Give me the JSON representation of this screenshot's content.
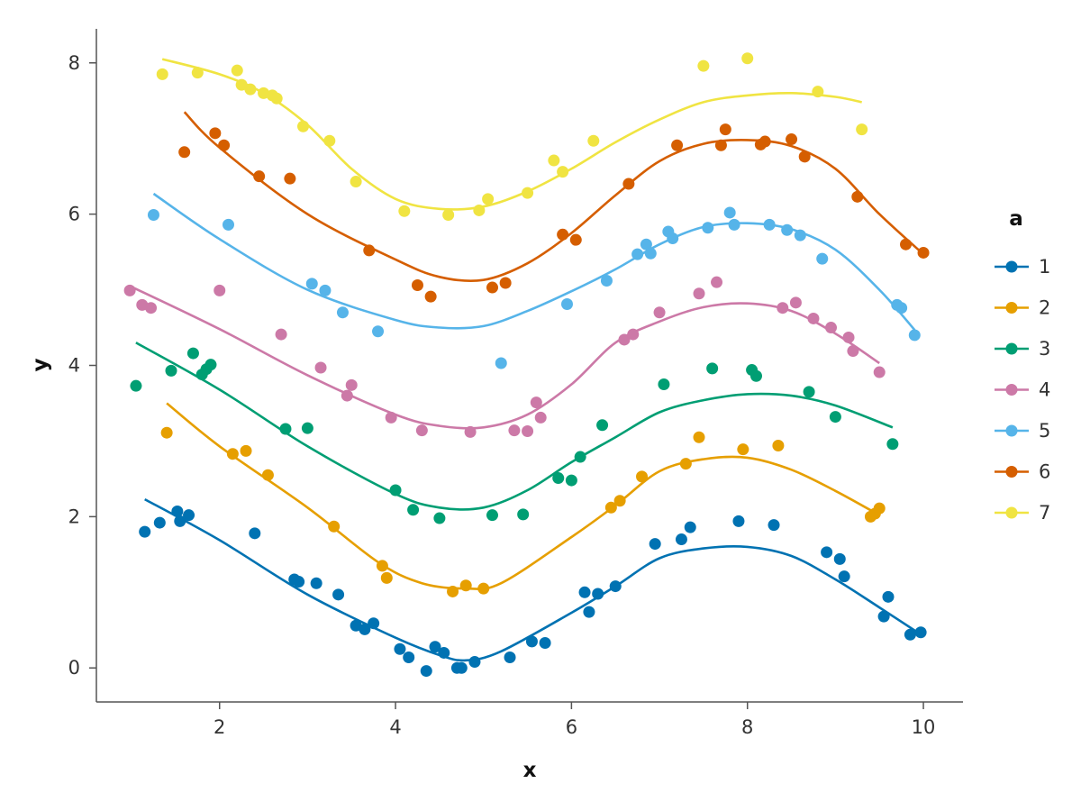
{
  "chart_data": {
    "type": "scatter",
    "xlabel": "x",
    "ylabel": "y",
    "xlim": [
      0.6,
      10.45
    ],
    "ylim": [
      -0.45,
      8.45
    ],
    "xticks": [
      2,
      4,
      6,
      8,
      10
    ],
    "yticks": [
      0,
      2,
      4,
      6,
      8
    ],
    "grid": false,
    "legend": {
      "title": "a",
      "placement": "right"
    },
    "series": [
      {
        "name": "1",
        "color": "#0072b2",
        "points": [
          [
            1.15,
            1.8
          ],
          [
            1.32,
            1.92
          ],
          [
            1.52,
            2.07
          ],
          [
            1.55,
            1.94
          ],
          [
            1.65,
            2.02
          ],
          [
            2.4,
            1.78
          ],
          [
            2.85,
            1.17
          ],
          [
            2.9,
            1.14
          ],
          [
            3.1,
            1.12
          ],
          [
            3.35,
            0.97
          ],
          [
            3.55,
            0.56
          ],
          [
            3.65,
            0.51
          ],
          [
            3.75,
            0.59
          ],
          [
            4.05,
            0.25
          ],
          [
            4.15,
            0.14
          ],
          [
            4.35,
            -0.04
          ],
          [
            4.45,
            0.28
          ],
          [
            4.55,
            0.2
          ],
          [
            4.7,
            0.0
          ],
          [
            4.75,
            0.0
          ],
          [
            4.9,
            0.08
          ],
          [
            5.3,
            0.14
          ],
          [
            5.55,
            0.35
          ],
          [
            5.7,
            0.33
          ],
          [
            6.15,
            1.0
          ],
          [
            6.2,
            0.74
          ],
          [
            6.3,
            0.98
          ],
          [
            6.5,
            1.08
          ],
          [
            6.95,
            1.64
          ],
          [
            7.25,
            1.7
          ],
          [
            7.35,
            1.86
          ],
          [
            7.9,
            1.94
          ],
          [
            8.3,
            1.89
          ],
          [
            8.9,
            1.53
          ],
          [
            9.05,
            1.44
          ],
          [
            9.1,
            1.21
          ],
          [
            9.55,
            0.68
          ],
          [
            9.6,
            0.94
          ],
          [
            9.85,
            0.44
          ],
          [
            9.97,
            0.47
          ]
        ],
        "curve": [
          [
            1.15,
            2.23
          ],
          [
            2.0,
            1.69
          ],
          [
            3.0,
            0.97
          ],
          [
            4.0,
            0.4
          ],
          [
            4.5,
            0.17
          ],
          [
            4.8,
            0.1
          ],
          [
            5.2,
            0.22
          ],
          [
            6.0,
            0.73
          ],
          [
            6.5,
            1.08
          ],
          [
            7.0,
            1.45
          ],
          [
            7.5,
            1.58
          ],
          [
            8.0,
            1.6
          ],
          [
            8.5,
            1.48
          ],
          [
            9.0,
            1.17
          ],
          [
            9.5,
            0.8
          ],
          [
            10.0,
            0.42
          ]
        ]
      },
      {
        "name": "2",
        "color": "#e69f00",
        "points": [
          [
            1.4,
            3.11
          ],
          [
            2.15,
            2.83
          ],
          [
            2.3,
            2.87
          ],
          [
            2.55,
            2.55
          ],
          [
            3.3,
            1.87
          ],
          [
            3.85,
            1.35
          ],
          [
            3.9,
            1.19
          ],
          [
            4.65,
            1.01
          ],
          [
            4.8,
            1.09
          ],
          [
            5.0,
            1.05
          ],
          [
            6.45,
            2.12
          ],
          [
            6.55,
            2.21
          ],
          [
            6.8,
            2.53
          ],
          [
            7.3,
            2.7
          ],
          [
            7.45,
            3.05
          ],
          [
            7.95,
            2.89
          ],
          [
            8.35,
            2.94
          ],
          [
            9.4,
            2.0
          ],
          [
            9.45,
            2.04
          ],
          [
            9.5,
            2.11
          ]
        ],
        "curve": [
          [
            1.4,
            3.5
          ],
          [
            2.0,
            2.93
          ],
          [
            3.0,
            2.12
          ],
          [
            3.8,
            1.4
          ],
          [
            4.3,
            1.12
          ],
          [
            4.8,
            1.05
          ],
          [
            5.2,
            1.12
          ],
          [
            6.0,
            1.73
          ],
          [
            6.5,
            2.15
          ],
          [
            7.0,
            2.6
          ],
          [
            7.5,
            2.76
          ],
          [
            8.0,
            2.78
          ],
          [
            8.5,
            2.62
          ],
          [
            9.0,
            2.34
          ],
          [
            9.5,
            2.02
          ]
        ]
      },
      {
        "name": "3",
        "color": "#009e73",
        "points": [
          [
            1.05,
            3.73
          ],
          [
            1.45,
            3.93
          ],
          [
            1.7,
            4.16
          ],
          [
            1.8,
            3.88
          ],
          [
            1.85,
            3.95
          ],
          [
            1.9,
            4.01
          ],
          [
            2.75,
            3.16
          ],
          [
            3.0,
            3.17
          ],
          [
            4.0,
            2.35
          ],
          [
            4.2,
            2.09
          ],
          [
            4.5,
            1.98
          ],
          [
            5.1,
            2.02
          ],
          [
            5.45,
            2.03
          ],
          [
            5.85,
            2.51
          ],
          [
            6.0,
            2.48
          ],
          [
            6.1,
            2.79
          ],
          [
            6.35,
            3.21
          ],
          [
            7.05,
            3.75
          ],
          [
            7.6,
            3.96
          ],
          [
            8.05,
            3.94
          ],
          [
            8.1,
            3.86
          ],
          [
            8.7,
            3.65
          ],
          [
            9.0,
            3.32
          ],
          [
            9.65,
            2.96
          ]
        ],
        "curve": [
          [
            1.05,
            4.3
          ],
          [
            2.0,
            3.68
          ],
          [
            3.0,
            2.93
          ],
          [
            4.0,
            2.3
          ],
          [
            4.5,
            2.12
          ],
          [
            5.0,
            2.12
          ],
          [
            5.5,
            2.35
          ],
          [
            6.0,
            2.72
          ],
          [
            6.5,
            3.05
          ],
          [
            7.0,
            3.38
          ],
          [
            7.5,
            3.54
          ],
          [
            8.0,
            3.62
          ],
          [
            8.5,
            3.6
          ],
          [
            9.0,
            3.47
          ],
          [
            9.65,
            3.18
          ]
        ]
      },
      {
        "name": "4",
        "color": "#cc79a7",
        "points": [
          [
            0.98,
            4.99
          ],
          [
            1.12,
            4.8
          ],
          [
            1.22,
            4.76
          ],
          [
            2.0,
            4.99
          ],
          [
            2.7,
            4.41
          ],
          [
            3.15,
            3.97
          ],
          [
            3.45,
            3.6
          ],
          [
            3.5,
            3.74
          ],
          [
            3.95,
            3.31
          ],
          [
            4.3,
            3.14
          ],
          [
            4.85,
            3.12
          ],
          [
            5.35,
            3.14
          ],
          [
            5.5,
            3.13
          ],
          [
            5.6,
            3.51
          ],
          [
            5.65,
            3.31
          ],
          [
            6.6,
            4.34
          ],
          [
            6.7,
            4.41
          ],
          [
            7.0,
            4.7
          ],
          [
            7.45,
            4.95
          ],
          [
            7.65,
            5.1
          ],
          [
            8.4,
            4.76
          ],
          [
            8.55,
            4.83
          ],
          [
            8.75,
            4.62
          ],
          [
            8.95,
            4.5
          ],
          [
            9.15,
            4.37
          ],
          [
            9.2,
            4.19
          ],
          [
            9.5,
            3.91
          ]
        ],
        "curve": [
          [
            0.98,
            5.05
          ],
          [
            2.0,
            4.48
          ],
          [
            3.0,
            3.87
          ],
          [
            4.0,
            3.35
          ],
          [
            4.5,
            3.2
          ],
          [
            5.0,
            3.18
          ],
          [
            5.5,
            3.35
          ],
          [
            6.0,
            3.75
          ],
          [
            6.5,
            4.3
          ],
          [
            7.0,
            4.58
          ],
          [
            7.5,
            4.77
          ],
          [
            8.0,
            4.82
          ],
          [
            8.5,
            4.72
          ],
          [
            9.0,
            4.42
          ],
          [
            9.5,
            4.03
          ]
        ]
      },
      {
        "name": "5",
        "color": "#56b4e9",
        "points": [
          [
            1.25,
            5.99
          ],
          [
            2.1,
            5.86
          ],
          [
            3.05,
            5.08
          ],
          [
            3.2,
            4.99
          ],
          [
            3.4,
            4.7
          ],
          [
            3.8,
            4.45
          ],
          [
            5.2,
            4.03
          ],
          [
            5.95,
            4.81
          ],
          [
            6.4,
            5.12
          ],
          [
            6.75,
            5.47
          ],
          [
            6.85,
            5.6
          ],
          [
            6.9,
            5.48
          ],
          [
            7.1,
            5.77
          ],
          [
            7.15,
            5.68
          ],
          [
            7.55,
            5.82
          ],
          [
            7.8,
            6.02
          ],
          [
            7.85,
            5.86
          ],
          [
            8.25,
            5.86
          ],
          [
            8.45,
            5.79
          ],
          [
            8.6,
            5.72
          ],
          [
            8.85,
            5.41
          ],
          [
            9.7,
            4.8
          ],
          [
            9.75,
            4.76
          ],
          [
            9.9,
            4.4
          ]
        ],
        "curve": [
          [
            1.25,
            6.27
          ],
          [
            2.0,
            5.67
          ],
          [
            3.0,
            5.0
          ],
          [
            4.0,
            4.6
          ],
          [
            4.5,
            4.5
          ],
          [
            5.0,
            4.52
          ],
          [
            5.5,
            4.72
          ],
          [
            6.0,
            4.98
          ],
          [
            6.5,
            5.27
          ],
          [
            7.0,
            5.6
          ],
          [
            7.5,
            5.83
          ],
          [
            8.0,
            5.88
          ],
          [
            8.5,
            5.8
          ],
          [
            9.0,
            5.53
          ],
          [
            9.5,
            5.0
          ],
          [
            9.9,
            4.47
          ]
        ]
      },
      {
        "name": "6",
        "color": "#d55e00",
        "points": [
          [
            1.6,
            6.82
          ],
          [
            1.95,
            7.07
          ],
          [
            2.05,
            6.91
          ],
          [
            2.45,
            6.5
          ],
          [
            2.8,
            6.47
          ],
          [
            3.7,
            5.52
          ],
          [
            4.25,
            5.06
          ],
          [
            4.4,
            4.91
          ],
          [
            5.1,
            5.03
          ],
          [
            5.25,
            5.09
          ],
          [
            5.9,
            5.73
          ],
          [
            6.05,
            5.66
          ],
          [
            6.65,
            6.4
          ],
          [
            7.2,
            6.91
          ],
          [
            7.7,
            6.91
          ],
          [
            7.75,
            7.12
          ],
          [
            8.15,
            6.92
          ],
          [
            8.2,
            6.96
          ],
          [
            8.5,
            6.99
          ],
          [
            8.65,
            6.76
          ],
          [
            9.25,
            6.23
          ],
          [
            9.8,
            5.6
          ],
          [
            10.0,
            5.49
          ]
        ],
        "curve": [
          [
            1.6,
            7.35
          ],
          [
            2.0,
            6.88
          ],
          [
            3.0,
            6.0
          ],
          [
            4.0,
            5.4
          ],
          [
            4.5,
            5.17
          ],
          [
            5.0,
            5.13
          ],
          [
            5.5,
            5.35
          ],
          [
            6.0,
            5.75
          ],
          [
            6.5,
            6.25
          ],
          [
            7.0,
            6.7
          ],
          [
            7.5,
            6.93
          ],
          [
            8.0,
            6.98
          ],
          [
            8.5,
            6.9
          ],
          [
            9.0,
            6.6
          ],
          [
            9.5,
            6.0
          ],
          [
            10.0,
            5.47
          ]
        ]
      },
      {
        "name": "7",
        "color": "#f0e442",
        "points": [
          [
            1.35,
            7.85
          ],
          [
            1.75,
            7.87
          ],
          [
            2.2,
            7.9
          ],
          [
            2.25,
            7.71
          ],
          [
            2.35,
            7.65
          ],
          [
            2.5,
            7.6
          ],
          [
            2.6,
            7.57
          ],
          [
            2.65,
            7.53
          ],
          [
            2.95,
            7.16
          ],
          [
            3.25,
            6.97
          ],
          [
            3.55,
            6.43
          ],
          [
            4.1,
            6.04
          ],
          [
            4.6,
            5.99
          ],
          [
            4.95,
            6.05
          ],
          [
            5.05,
            6.2
          ],
          [
            5.5,
            6.28
          ],
          [
            5.8,
            6.71
          ],
          [
            5.9,
            6.56
          ],
          [
            6.25,
            6.97
          ],
          [
            7.5,
            7.96
          ],
          [
            8.0,
            8.06
          ],
          [
            8.8,
            7.62
          ],
          [
            9.3,
            7.12
          ]
        ],
        "curve": [
          [
            1.35,
            8.05
          ],
          [
            2.0,
            7.85
          ],
          [
            2.5,
            7.6
          ],
          [
            3.0,
            7.18
          ],
          [
            3.5,
            6.6
          ],
          [
            4.0,
            6.2
          ],
          [
            4.5,
            6.07
          ],
          [
            5.0,
            6.1
          ],
          [
            5.5,
            6.3
          ],
          [
            6.0,
            6.6
          ],
          [
            6.5,
            6.95
          ],
          [
            7.0,
            7.25
          ],
          [
            7.5,
            7.48
          ],
          [
            8.0,
            7.57
          ],
          [
            8.5,
            7.6
          ],
          [
            9.0,
            7.55
          ],
          [
            9.3,
            7.48
          ]
        ]
      }
    ]
  }
}
